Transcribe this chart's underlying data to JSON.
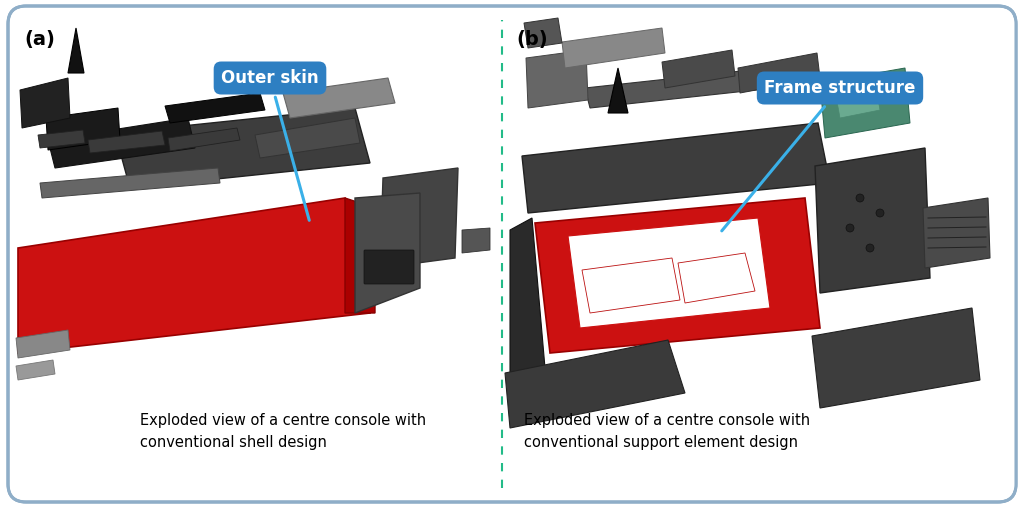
{
  "background_color": "#ffffff",
  "border_color": "#8faec8",
  "divider_color": "#22bb88",
  "label_a": "(a)",
  "label_b": "(b)",
  "label_fontsize": 14,
  "label_fontweight": "bold",
  "annotation_a_text": "Outer skin",
  "annotation_b_text": "Frame structure",
  "annotation_box_color": "#2e7fc2",
  "annotation_text_color": "#ffffff",
  "annotation_fontsize": 12,
  "annotation_fontweight": "bold",
  "arrow_color": "#3ab0e8",
  "caption_a_line1": "Exploded view of a centre console with",
  "caption_a_line2": "conventional shell design",
  "caption_b_line1": "Exploded view of a centre console with",
  "caption_b_line2": "conventional support element design",
  "caption_fontsize": 10.5,
  "figsize": [
    10.24,
    5.08
  ],
  "dpi": 100
}
